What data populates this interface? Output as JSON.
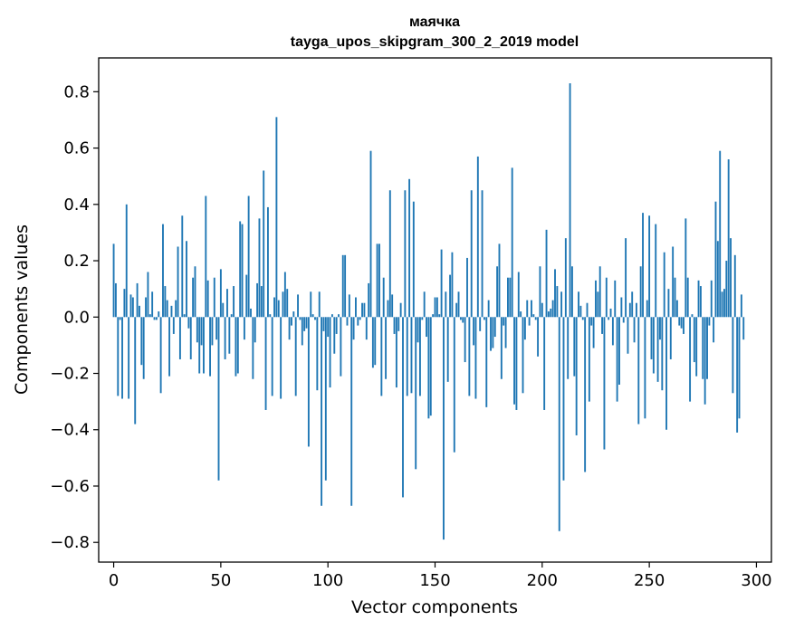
{
  "chart_data": {
    "type": "bar",
    "title": "маячка",
    "subtitle": "tayga_upos_skipgram_300_2_2019 model",
    "xlabel": "Vector components",
    "ylabel": "Components values",
    "xlim": [
      -7,
      307
    ],
    "ylim": [
      -0.87,
      0.92
    ],
    "xticks": [
      0,
      50,
      100,
      150,
      200,
      250,
      300
    ],
    "yticks": [
      -0.8,
      -0.6,
      -0.4,
      -0.2,
      0.0,
      0.2,
      0.4,
      0.6,
      0.8
    ],
    "ytick_labels": [
      "−0.8",
      "−0.6",
      "−0.4",
      "−0.2",
      "0.0",
      "0.2",
      "0.4",
      "0.6",
      "0.8"
    ],
    "grid": false,
    "bar_color": "#1f77b4",
    "values": [
      0.26,
      0.12,
      -0.28,
      -0.01,
      -0.29,
      0.1,
      0.4,
      -0.29,
      0.08,
      0.07,
      -0.38,
      0.12,
      0.04,
      -0.17,
      -0.22,
      0.07,
      0.16,
      0.01,
      0.09,
      -0.01,
      -0.01,
      0.02,
      -0.27,
      0.33,
      0.11,
      0.06,
      -0.21,
      0.04,
      -0.06,
      0.06,
      0.25,
      -0.15,
      0.36,
      0.01,
      0.27,
      -0.04,
      -0.15,
      0.14,
      0.18,
      -0.09,
      -0.2,
      -0.1,
      -0.2,
      0.43,
      0.13,
      -0.21,
      -0.1,
      0.14,
      -0.08,
      -0.58,
      0.17,
      0.05,
      -0.15,
      0.1,
      -0.13,
      0.01,
      0.11,
      -0.21,
      -0.2,
      0.34,
      0.33,
      -0.08,
      0.15,
      0.43,
      0.03,
      -0.22,
      -0.09,
      0.12,
      0.35,
      0.11,
      0.52,
      -0.33,
      0.39,
      0.01,
      -0.28,
      0.07,
      0.71,
      0.06,
      -0.29,
      0.09,
      0.16,
      0.1,
      -0.08,
      -0.03,
      0.02,
      -0.28,
      0.08,
      -0.01,
      -0.1,
      -0.05,
      -0.04,
      -0.46,
      0.09,
      0.01,
      -0.01,
      -0.26,
      0.09,
      -0.67,
      -0.05,
      -0.58,
      -0.07,
      -0.25,
      0.01,
      -0.13,
      -0.06,
      0.01,
      -0.21,
      0.22,
      0.22,
      -0.03,
      0.08,
      -0.67,
      -0.08,
      0.07,
      -0.03,
      -0.01,
      0.05,
      0.05,
      -0.08,
      0.12,
      0.59,
      -0.18,
      -0.17,
      0.26,
      0.26,
      -0.28,
      0.14,
      -0.22,
      0.06,
      0.45,
      0.08,
      -0.06,
      -0.25,
      -0.05,
      0.05,
      -0.64,
      0.45,
      -0.28,
      0.49,
      -0.27,
      0.41,
      -0.54,
      -0.09,
      -0.28,
      -0.01,
      0.09,
      -0.07,
      -0.36,
      -0.35,
      0.01,
      0.07,
      0.07,
      0.01,
      0.24,
      -0.79,
      0.09,
      -0.23,
      0.15,
      0.23,
      -0.48,
      0.05,
      0.09,
      -0.01,
      -0.02,
      -0.16,
      0.21,
      -0.28,
      0.45,
      -0.1,
      -0.29,
      0.57,
      -0.05,
      0.45,
      -0.01,
      -0.32,
      0.06,
      -0.12,
      -0.11,
      -0.07,
      0.18,
      0.26,
      -0.22,
      -0.03,
      -0.11,
      0.14,
      0.14,
      0.53,
      -0.31,
      -0.33,
      0.16,
      0.02,
      -0.27,
      -0.08,
      0.06,
      -0.03,
      0.06,
      0.01,
      -0.01,
      -0.14,
      0.18,
      0.05,
      -0.33,
      0.31,
      0.02,
      0.03,
      0.06,
      0.17,
      0.11,
      -0.76,
      0.09,
      -0.58,
      0.28,
      -0.22,
      0.83,
      0.18,
      -0.21,
      -0.42,
      0.09,
      0.04,
      -0.01,
      -0.55,
      0.05,
      -0.3,
      -0.03,
      -0.11,
      0.13,
      0.09,
      0.18,
      -0.06,
      -0.47,
      0.14,
      -0.01,
      0.03,
      -0.1,
      0.13,
      -0.3,
      -0.24,
      0.07,
      -0.02,
      0.28,
      -0.13,
      0.05,
      0.09,
      -0.09,
      0.05,
      -0.38,
      0.18,
      0.37,
      -0.36,
      0.06,
      0.36,
      -0.15,
      -0.2,
      0.33,
      -0.23,
      -0.08,
      -0.26,
      0.23,
      -0.4,
      0.1,
      -0.15,
      0.25,
      0.14,
      0.06,
      -0.03,
      -0.04,
      -0.06,
      0.35,
      0.14,
      -0.3,
      0.01,
      -0.16,
      -0.21,
      0.13,
      0.11,
      -0.22,
      -0.31,
      -0.22,
      -0.03,
      0.13,
      -0.09,
      0.41,
      0.27,
      0.59,
      0.09,
      0.1,
      0.2,
      0.56,
      0.28,
      -0.27,
      0.22,
      -0.41,
      -0.36,
      0.08,
      -0.08
    ]
  }
}
